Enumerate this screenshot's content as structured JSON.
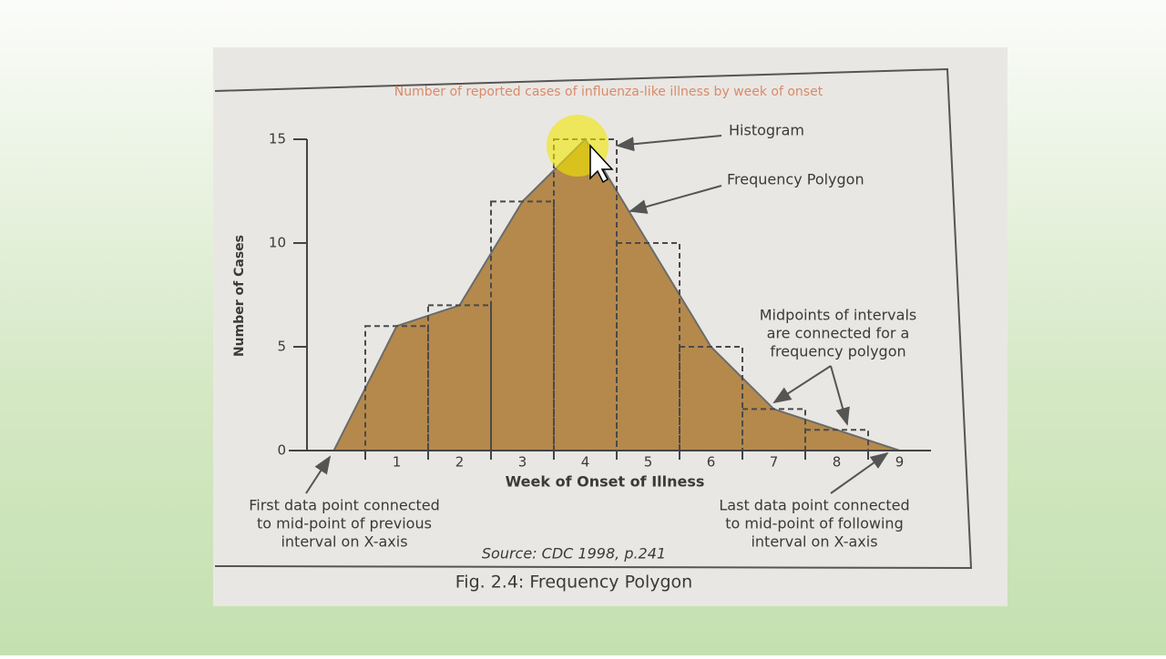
{
  "chart_data": {
    "type": "histogram",
    "title": "Number of reported cases of influenza-like illness by week of onset",
    "x_label": "Week of Onset of Illness",
    "y_label": "Number of Cases",
    "bins": [
      0.5,
      1.5,
      2.5,
      3.5,
      4.5,
      5.5,
      6.5,
      7.5,
      8.5
    ],
    "values": [
      6,
      7,
      12,
      15,
      10,
      5,
      2,
      1
    ],
    "polygon": {
      "x": [
        0,
        1,
        2,
        3,
        4,
        5,
        6,
        7,
        8,
        9
      ],
      "values": [
        0,
        6,
        7,
        12,
        15,
        10,
        5,
        2,
        1,
        0
      ],
      "color": "#b5894c"
    },
    "xlim": [
      -0.5,
      9.5
    ],
    "xticks": [
      1,
      2,
      3,
      4,
      5,
      6,
      7,
      8,
      9
    ],
    "ylim": [
      0,
      15
    ],
    "yticks": [
      0,
      5,
      10,
      15
    ],
    "annotations": [
      {
        "lines": [
          "Histogram"
        ]
      },
      {
        "lines": [
          "Frequency Polygon"
        ]
      },
      {
        "lines": [
          "Midpoints of intervals",
          "are connected for a",
          "frequency polygon"
        ]
      },
      {
        "lines": [
          "First data point connected",
          "to mid-point of previous",
          "interval on X-axis"
        ]
      },
      {
        "lines": [
          "Last data point connected",
          "to mid-point of following",
          "interval on X-axis"
        ]
      }
    ],
    "source": "Source: CDC 1998, p.241",
    "caption": "Fig. 2.4: Frequency Polygon"
  }
}
